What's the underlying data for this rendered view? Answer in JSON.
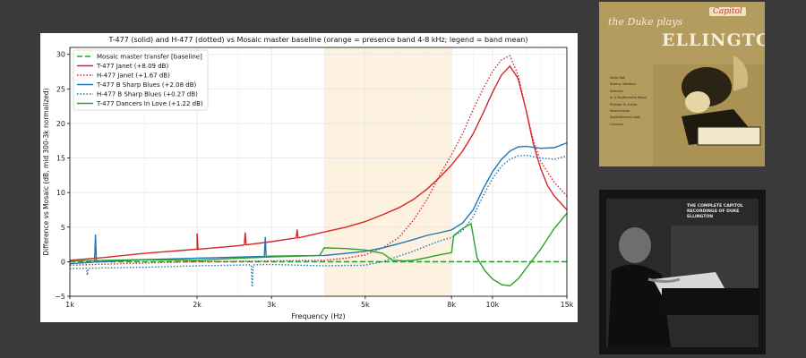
{
  "chart_data": {
    "type": "line",
    "title": "T-477 (solid) and H-477 (dotted) vs Mosaic master baseline (orange = presence band 4-8 kHz; legend = band mean)",
    "xlabel": "Frequency (Hz)",
    "ylabel": "Difference vs Mosaic (dB, mid 300-3k normalized)",
    "x_scale": "log",
    "xlim": [
      1000,
      15000
    ],
    "ylim": [
      -5,
      31
    ],
    "x_ticks": [
      1000,
      2000,
      3000,
      5000,
      8000,
      10000,
      15000
    ],
    "x_tick_labels": [
      "1k",
      "2k",
      "3k",
      "5k",
      "8k",
      "10k",
      "15k"
    ],
    "y_ticks": [
      -5,
      0,
      5,
      10,
      15,
      20,
      25,
      30
    ],
    "y_tick_labels": [
      "−5",
      "0",
      "5",
      "10",
      "15",
      "20",
      "25",
      "30"
    ],
    "grid": true,
    "legend_position": "top-left",
    "shaded_band": {
      "from": 4000,
      "to": 8000,
      "color": "#fdf1df"
    },
    "series": [
      {
        "name": "Mosaic master transfer [baseline]",
        "color": "#2ca02c",
        "style": "dashed",
        "points": [
          [
            1000,
            0
          ],
          [
            15000,
            0
          ]
        ]
      },
      {
        "name": "T-477  Janet (+8.09 dB)",
        "color": "#d62728",
        "style": "solid",
        "points": [
          [
            1000,
            0.2
          ],
          [
            1200,
            0.6
          ],
          [
            1500,
            1.2
          ],
          [
            2000,
            1.8
          ],
          [
            2500,
            2.3
          ],
          [
            3000,
            2.9
          ],
          [
            3500,
            3.5
          ],
          [
            4000,
            4.3
          ],
          [
            4500,
            5.0
          ],
          [
            5000,
            5.8
          ],
          [
            5500,
            6.8
          ],
          [
            6000,
            7.8
          ],
          [
            6500,
            9.0
          ],
          [
            7000,
            10.5
          ],
          [
            7500,
            12.2
          ],
          [
            8000,
            14.0
          ],
          [
            8500,
            16.0
          ],
          [
            9000,
            18.5
          ],
          [
            9500,
            21.5
          ],
          [
            10000,
            24.5
          ],
          [
            10500,
            27.0
          ],
          [
            11000,
            28.3
          ],
          [
            11500,
            26.5
          ],
          [
            12000,
            22.0
          ],
          [
            12500,
            17.0
          ],
          [
            13000,
            13.5
          ],
          [
            13500,
            11.0
          ],
          [
            14000,
            9.5
          ],
          [
            15000,
            7.5
          ]
        ]
      },
      {
        "name": "H-477  Janet (+1.67 dB)",
        "color": "#d62728",
        "style": "dotted",
        "points": [
          [
            1000,
            -0.5
          ],
          [
            1500,
            -0.2
          ],
          [
            2000,
            0.0
          ],
          [
            3000,
            0.1
          ],
          [
            4000,
            0.2
          ],
          [
            4500,
            0.5
          ],
          [
            5000,
            1.0
          ],
          [
            5500,
            2.0
          ],
          [
            6000,
            3.5
          ],
          [
            6500,
            6.0
          ],
          [
            7000,
            9.0
          ],
          [
            7500,
            12.5
          ],
          [
            8000,
            15.5
          ],
          [
            8500,
            18.5
          ],
          [
            9000,
            22.0
          ],
          [
            9500,
            25.0
          ],
          [
            10000,
            27.5
          ],
          [
            10500,
            29.2
          ],
          [
            11000,
            29.8
          ],
          [
            11500,
            27.0
          ],
          [
            12000,
            22.0
          ],
          [
            12500,
            17.5
          ],
          [
            13000,
            14.5
          ],
          [
            14000,
            11.5
          ],
          [
            15000,
            9.5
          ]
        ]
      },
      {
        "name": "T-477  B Sharp Blues (+2.08 dB)",
        "color": "#1f77b4",
        "style": "solid",
        "points": [
          [
            1000,
            -0.3
          ],
          [
            1200,
            0.0
          ],
          [
            1500,
            0.3
          ],
          [
            2000,
            0.5
          ],
          [
            3000,
            0.8
          ],
          [
            4000,
            0.9
          ],
          [
            4500,
            1.2
          ],
          [
            5000,
            1.5
          ],
          [
            5500,
            2.0
          ],
          [
            6000,
            2.6
          ],
          [
            6500,
            3.2
          ],
          [
            7000,
            3.8
          ],
          [
            7500,
            4.2
          ],
          [
            8000,
            4.6
          ],
          [
            8500,
            5.6
          ],
          [
            9000,
            7.5
          ],
          [
            9500,
            10.5
          ],
          [
            10000,
            13.0
          ],
          [
            10500,
            14.8
          ],
          [
            11000,
            16.0
          ],
          [
            11500,
            16.6
          ],
          [
            12000,
            16.7
          ],
          [
            13000,
            16.4
          ],
          [
            14000,
            16.5
          ],
          [
            15000,
            17.2
          ]
        ]
      },
      {
        "name": "H-477  B Sharp Blues (+0.27 dB)",
        "color": "#1f77b4",
        "style": "dotted",
        "points": [
          [
            1000,
            -1.0
          ],
          [
            1500,
            -0.8
          ],
          [
            2000,
            -0.6
          ],
          [
            3000,
            -0.4
          ],
          [
            4000,
            -0.6
          ],
          [
            5000,
            -0.5
          ],
          [
            5500,
            0.0
          ],
          [
            6000,
            0.8
          ],
          [
            6500,
            1.5
          ],
          [
            7000,
            2.3
          ],
          [
            7500,
            3.0
          ],
          [
            8000,
            3.5
          ],
          [
            8500,
            4.5
          ],
          [
            9000,
            6.5
          ],
          [
            9500,
            9.5
          ],
          [
            10000,
            12.0
          ],
          [
            10500,
            13.8
          ],
          [
            11000,
            14.8
          ],
          [
            11500,
            15.3
          ],
          [
            12000,
            15.4
          ],
          [
            13000,
            15.0
          ],
          [
            14000,
            14.8
          ],
          [
            15000,
            15.3
          ]
        ]
      },
      {
        "name": "T-477  Dancers In Love (+1.22 dB)",
        "color": "#2ca02c",
        "style": "solid",
        "points": [
          [
            1000,
            0.1
          ],
          [
            1500,
            0.3
          ],
          [
            2000,
            0.2
          ],
          [
            2500,
            0.5
          ],
          [
            3000,
            0.7
          ],
          [
            3500,
            0.8
          ],
          [
            3900,
            0.9
          ],
          [
            4000,
            2.0
          ],
          [
            4500,
            1.9
          ],
          [
            5000,
            1.7
          ],
          [
            5500,
            1.2
          ],
          [
            5800,
            0.2
          ],
          [
            6200,
            0.1
          ],
          [
            6500,
            0.2
          ],
          [
            7000,
            0.6
          ],
          [
            7500,
            1.0
          ],
          [
            8000,
            1.3
          ],
          [
            8100,
            3.8
          ],
          [
            8500,
            4.8
          ],
          [
            8900,
            5.5
          ],
          [
            9200,
            0.5
          ],
          [
            9600,
            -1.3
          ],
          [
            10000,
            -2.5
          ],
          [
            10500,
            -3.3
          ],
          [
            11000,
            -3.5
          ],
          [
            11500,
            -2.5
          ],
          [
            12000,
            -1.0
          ],
          [
            13000,
            1.8
          ],
          [
            14000,
            4.8
          ],
          [
            15000,
            7.0
          ]
        ]
      }
    ],
    "spikes": [
      {
        "series": 1,
        "x": 2000,
        "dy": 2.3
      },
      {
        "series": 1,
        "x": 2600,
        "dy": 1.8
      },
      {
        "series": 1,
        "x": 3450,
        "dy": 1.2
      },
      {
        "series": 3,
        "x": 1150,
        "dy": 4.0
      },
      {
        "series": 3,
        "x": 2900,
        "dy": 2.8
      },
      {
        "series": 4,
        "x": 2700,
        "dy": -3.2
      },
      {
        "series": 4,
        "x": 1100,
        "dy": -1.0
      }
    ]
  },
  "cover_1": {
    "title_script": "the Duke plays",
    "title_big": "ELLINGTON",
    "logo": "Capitol",
    "tracks": [
      "Satin Doll",
      "Stormy Weather",
      "Solitude",
      "In A Sentimental Mood",
      "Prelude To A Kiss",
      "Mood Indigo",
      "Sophisticated Lady",
      "Caravan"
    ]
  },
  "cover_2": {
    "text": "THE COMPLETE CAPITOL RECORDINGS OF DUKE ELLINGTON"
  }
}
